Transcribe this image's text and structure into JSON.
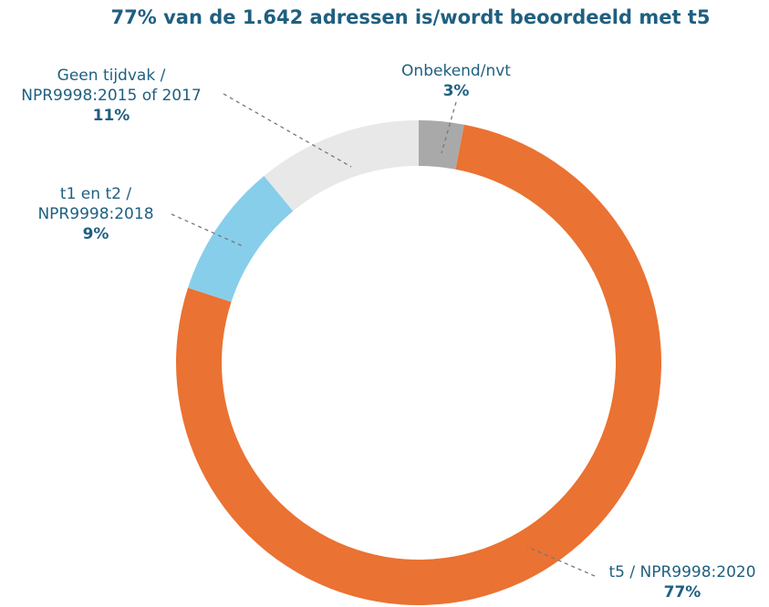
{
  "chart_data": {
    "type": "donut",
    "title": "77% van de 1.642 adressen is/wordt beoordeeld met t5",
    "labels": [
      [
        "Onbekend/nvt"
      ],
      [
        "t5 / NPR9998:2020"
      ],
      [
        "t1 en t2 /",
        "NPR9998:2018"
      ],
      [
        "Geen tijdvak /",
        "NPR9998:2015 of 2017"
      ]
    ],
    "values": [
      3,
      77,
      9,
      11
    ],
    "value_labels": [
      "3%",
      "77%",
      "9%",
      "11%"
    ],
    "colors": [
      "#a9a9a9",
      "#ea7232",
      "#87ceeb",
      "#e8e8e8"
    ]
  }
}
